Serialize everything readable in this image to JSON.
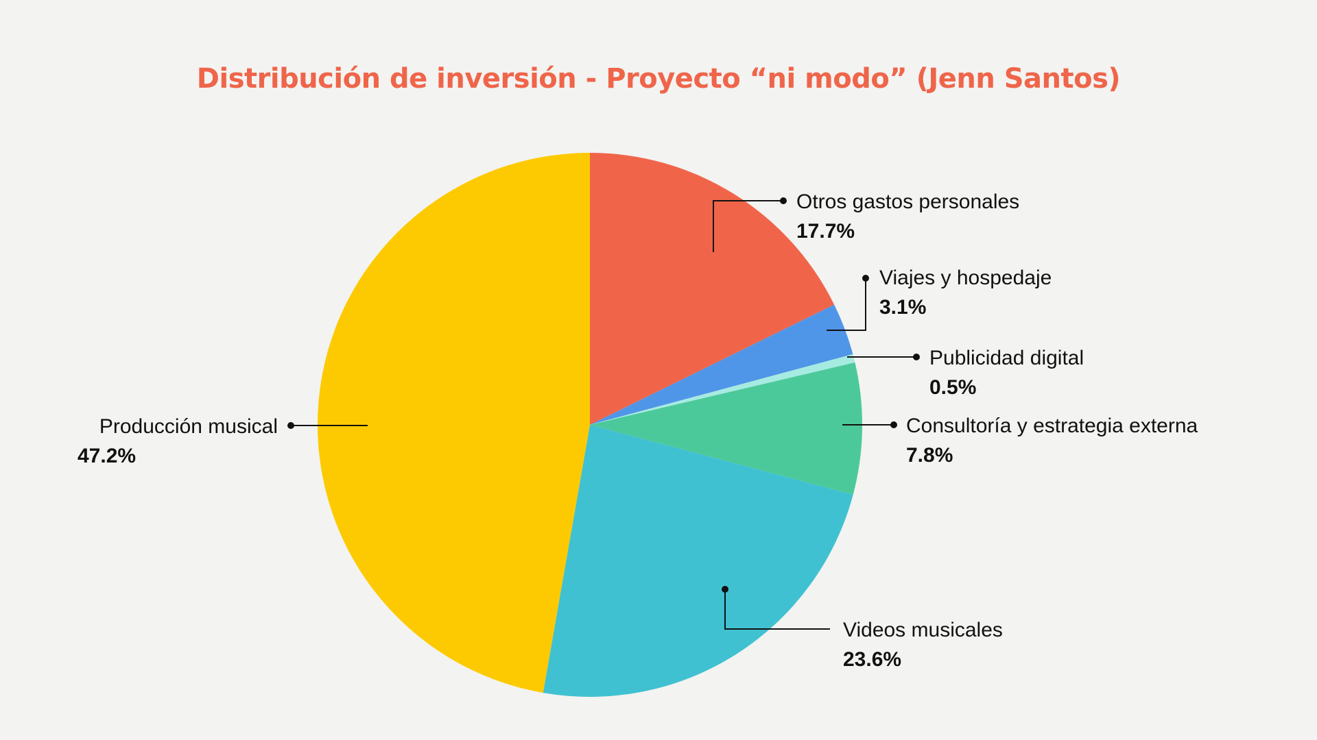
{
  "chart_data": {
    "type": "pie",
    "title": "Distribución de inversión - Proyecto “ni modo” (Jenn Santos)",
    "start_angle_deg": 0,
    "direction": "clockwise",
    "legend": "none",
    "slices": [
      {
        "label": "Otros gastos personales",
        "value": 17.7,
        "value_label": "17.7%",
        "color": "#f0654a"
      },
      {
        "label": "Viajes y hospedaje",
        "value": 3.1,
        "value_label": "3.1%",
        "color": "#5096e8"
      },
      {
        "label": "Publicidad digital",
        "value": 0.5,
        "value_label": "0.5%",
        "color": "#a6ebe1"
      },
      {
        "label": "Consultoría y estrategia externa",
        "value": 7.8,
        "value_label": "7.8%",
        "color": "#4cc99a"
      },
      {
        "label": "Videos musicales",
        "value": 23.6,
        "value_label": "23.6%",
        "color": "#40c1d1"
      },
      {
        "label": "Producción musical",
        "value": 47.2,
        "value_label": "47.2%",
        "color": "#fdca02"
      }
    ]
  }
}
